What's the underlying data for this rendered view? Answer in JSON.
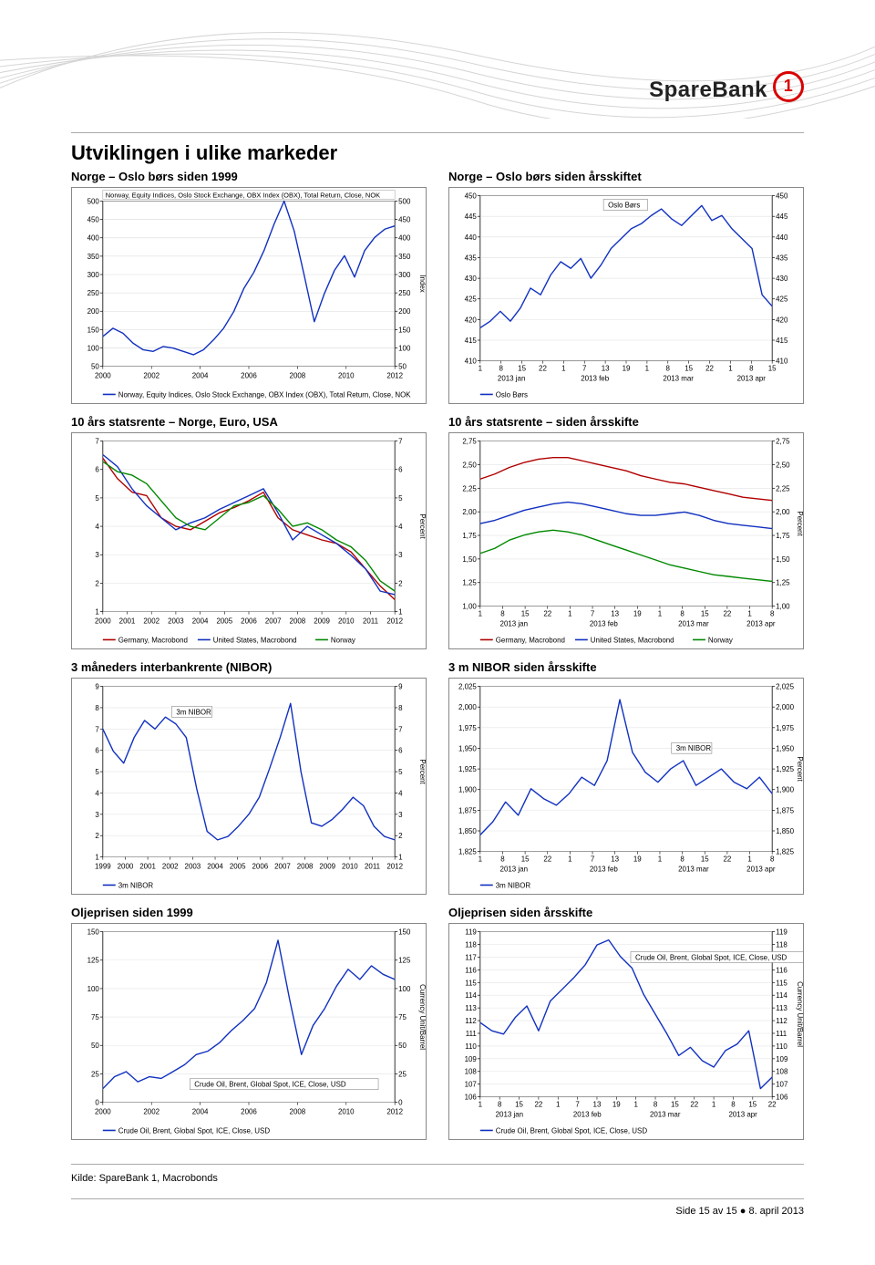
{
  "logo_text": "SpareBank",
  "page_title": "Utviklingen i ulike markeder",
  "source_line": "Kilde: SpareBank 1, Macrobonds",
  "page_footer": "Side 15 av 15 ● 8. april 2013",
  "charts": {
    "c1": {
      "title": "Norge – Oslo børs siden 1999",
      "top_label": "Norway, Equity Indices, Oslo Stock Exchange, OBX Index (OBX), Total Return, Close, NOK",
      "legend": "Norway, Equity Indices, Oslo Stock Exchange, OBX Index (OBX), Total Return, Close, NOK",
      "ytick_labels": [
        "50",
        "100",
        "150",
        "200",
        "250",
        "300",
        "350",
        "400",
        "450",
        "500"
      ],
      "ylim": [
        50,
        500
      ],
      "xtick_labels": [
        "2000",
        "2002",
        "2004",
        "2006",
        "2008",
        "2010",
        "2012"
      ],
      "right_axis_label": "Index",
      "series_color": "#1030c0",
      "grid_color": "#d8d8d8",
      "normalized_points_y01": [
        0.18,
        0.23,
        0.2,
        0.14,
        0.1,
        0.09,
        0.12,
        0.11,
        0.09,
        0.07,
        0.1,
        0.16,
        0.23,
        0.33,
        0.47,
        0.57,
        0.7,
        0.86,
        1.0,
        0.82,
        0.55,
        0.27,
        0.44,
        0.58,
        0.67,
        0.54,
        0.7,
        0.78,
        0.83,
        0.85
      ]
    },
    "c2": {
      "title": "Norge – Oslo børs siden årsskiftet",
      "legend_label_box": "Oslo Børs",
      "legend_bottom": "Oslo Børs",
      "ytick_labels": [
        "410",
        "415",
        "420",
        "425",
        "430",
        "435",
        "440",
        "445",
        "450"
      ],
      "ylim": [
        410,
        450
      ],
      "xticks": [
        {
          "major": "2013 jan",
          "minors": [
            "1",
            "8",
            "15",
            "22"
          ]
        },
        {
          "major": "2013 feb",
          "minors": [
            "1",
            "7",
            "13",
            "19"
          ]
        },
        {
          "major": "2013 mar",
          "minors": [
            "1",
            "8",
            "15",
            "22"
          ]
        },
        {
          "major": "2013 apr",
          "minors": [
            "1",
            "8",
            "15"
          ]
        }
      ],
      "series_color": "#1030c0",
      "grid_color": "#e0e0e0",
      "normalized_points_y01": [
        0.2,
        0.24,
        0.3,
        0.24,
        0.32,
        0.44,
        0.4,
        0.52,
        0.6,
        0.56,
        0.62,
        0.5,
        0.58,
        0.68,
        0.74,
        0.8,
        0.83,
        0.88,
        0.92,
        0.86,
        0.82,
        0.88,
        0.94,
        0.85,
        0.88,
        0.8,
        0.74,
        0.68,
        0.4,
        0.33
      ]
    },
    "c3": {
      "title": "10 års statsrente – Norge, Euro, USA",
      "ytick_labels": [
        "1",
        "2",
        "3",
        "4",
        "5",
        "6",
        "7"
      ],
      "ylim": [
        1,
        7
      ],
      "xtick_labels": [
        "2000",
        "2001",
        "2002",
        "2003",
        "2004",
        "2005",
        "2006",
        "2007",
        "2008",
        "2009",
        "2010",
        "2011",
        "2012"
      ],
      "right_axis_label": "Percent",
      "legend_items": [
        {
          "label": "Germany, Macrobond",
          "color": "#b00000"
        },
        {
          "label": "United States, Macrobond",
          "color": "#1030c0"
        },
        {
          "label": "Norway",
          "color": "#008800"
        }
      ],
      "series": [
        {
          "color": "#b00000",
          "normalized": [
            0.9,
            0.78,
            0.7,
            0.68,
            0.55,
            0.5,
            0.48,
            0.53,
            0.58,
            0.61,
            0.65,
            0.7,
            0.55,
            0.48,
            0.45,
            0.42,
            0.4,
            0.35,
            0.25,
            0.15,
            0.07
          ]
        },
        {
          "color": "#1030c0",
          "normalized": [
            0.92,
            0.85,
            0.72,
            0.62,
            0.55,
            0.48,
            0.52,
            0.55,
            0.6,
            0.64,
            0.68,
            0.72,
            0.58,
            0.42,
            0.5,
            0.45,
            0.4,
            0.33,
            0.25,
            0.12,
            0.1
          ]
        },
        {
          "color": "#008800",
          "normalized": [
            0.88,
            0.82,
            0.8,
            0.75,
            0.65,
            0.55,
            0.5,
            0.48,
            0.55,
            0.62,
            0.64,
            0.68,
            0.6,
            0.5,
            0.52,
            0.48,
            0.42,
            0.38,
            0.3,
            0.18,
            0.12
          ]
        }
      ]
    },
    "c4": {
      "title": "10 års statsrente – siden årsskifte",
      "ytick_labels": [
        "1,00",
        "1,25",
        "1,50",
        "1,75",
        "2,00",
        "2,25",
        "2,50",
        "2,75"
      ],
      "ylim": [
        1.0,
        2.75
      ],
      "xticks": [
        {
          "major": "2013 jan",
          "minors": [
            "1",
            "8",
            "15",
            "22"
          ]
        },
        {
          "major": "2013 feb",
          "minors": [
            "1",
            "7",
            "13",
            "19"
          ]
        },
        {
          "major": "2013 mar",
          "minors": [
            "1",
            "8",
            "15",
            "22"
          ]
        },
        {
          "major": "2013 apr",
          "minors": [
            "1",
            "8"
          ]
        }
      ],
      "right_axis_label": "Percent",
      "legend_items": [
        {
          "label": "Germany, Macrobond",
          "color": "#b00000"
        },
        {
          "label": "United States, Macrobond",
          "color": "#1030c0"
        },
        {
          "label": "Norway",
          "color": "#008800"
        }
      ],
      "series": [
        {
          "color": "#b00000",
          "normalized": [
            0.77,
            0.8,
            0.84,
            0.87,
            0.89,
            0.9,
            0.9,
            0.88,
            0.86,
            0.84,
            0.82,
            0.79,
            0.77,
            0.75,
            0.74,
            0.72,
            0.7,
            0.68,
            0.66,
            0.65,
            0.64
          ]
        },
        {
          "color": "#1030c0",
          "normalized": [
            0.5,
            0.52,
            0.55,
            0.58,
            0.6,
            0.62,
            0.63,
            0.62,
            0.6,
            0.58,
            0.56,
            0.55,
            0.55,
            0.56,
            0.57,
            0.55,
            0.52,
            0.5,
            0.49,
            0.48,
            0.47
          ]
        },
        {
          "color": "#008800",
          "normalized": [
            0.32,
            0.35,
            0.4,
            0.43,
            0.45,
            0.46,
            0.45,
            0.43,
            0.4,
            0.37,
            0.34,
            0.31,
            0.28,
            0.25,
            0.23,
            0.21,
            0.19,
            0.18,
            0.17,
            0.16,
            0.15
          ]
        }
      ]
    },
    "c5": {
      "title": "3 måneders interbankrente (NIBOR)",
      "legend_label_box": "3m NIBOR",
      "legend_bottom": "3m NIBOR",
      "ytick_labels": [
        "1",
        "2",
        "3",
        "4",
        "5",
        "6",
        "7",
        "8",
        "9"
      ],
      "ylim": [
        1,
        9
      ],
      "xtick_labels": [
        "1999",
        "2000",
        "2001",
        "2002",
        "2003",
        "2004",
        "2005",
        "2006",
        "2007",
        "2008",
        "2009",
        "2010",
        "2011",
        "2012"
      ],
      "right_axis_label": "Percent",
      "series_color": "#1030c0",
      "normalized_points_y01": [
        0.75,
        0.62,
        0.55,
        0.7,
        0.8,
        0.75,
        0.82,
        0.78,
        0.7,
        0.4,
        0.15,
        0.1,
        0.12,
        0.18,
        0.25,
        0.35,
        0.52,
        0.7,
        0.9,
        0.5,
        0.2,
        0.18,
        0.22,
        0.28,
        0.35,
        0.3,
        0.18,
        0.12,
        0.1
      ]
    },
    "c6": {
      "title": "3 m NIBOR siden årsskifte",
      "legend_label_box": "3m NIBOR",
      "legend_bottom": "3m NIBOR",
      "ytick_labels": [
        "1,825",
        "1,850",
        "1,875",
        "1,900",
        "1,925",
        "1,950",
        "1,975",
        "2,000",
        "2,025"
      ],
      "ylim": [
        1.825,
        2.025
      ],
      "xticks": [
        {
          "major": "2013 jan",
          "minors": [
            "1",
            "8",
            "15",
            "22"
          ]
        },
        {
          "major": "2013 feb",
          "minors": [
            "1",
            "7",
            "13",
            "19"
          ]
        },
        {
          "major": "2013 mar",
          "minors": [
            "1",
            "8",
            "15",
            "22"
          ]
        },
        {
          "major": "2013 apr",
          "minors": [
            "1",
            "8"
          ]
        }
      ],
      "right_axis_label": "Percent",
      "series_color": "#1030c0",
      "normalized_points_y01": [
        0.1,
        0.18,
        0.3,
        0.22,
        0.38,
        0.32,
        0.28,
        0.35,
        0.45,
        0.4,
        0.55,
        0.92,
        0.6,
        0.48,
        0.42,
        0.5,
        0.55,
        0.4,
        0.45,
        0.5,
        0.42,
        0.38,
        0.45,
        0.35
      ]
    },
    "c7": {
      "title": "Oljeprisen siden 1999",
      "legend_label_box": "Crude Oil, Brent, Global Spot, ICE, Close, USD",
      "legend_bottom": "Crude Oil, Brent, Global Spot, ICE, Close, USD",
      "ytick_labels": [
        "0",
        "25",
        "50",
        "75",
        "100",
        "125",
        "150"
      ],
      "ylim": [
        0,
        150
      ],
      "xtick_labels": [
        "2000",
        "2002",
        "2004",
        "2006",
        "2008",
        "2010",
        "2012"
      ],
      "right_axis_label": "Currency Unit/Barrel",
      "series_color": "#1030c0",
      "normalized_points_y01": [
        0.08,
        0.15,
        0.18,
        0.12,
        0.15,
        0.14,
        0.18,
        0.22,
        0.28,
        0.3,
        0.35,
        0.42,
        0.48,
        0.55,
        0.7,
        0.95,
        0.6,
        0.28,
        0.45,
        0.55,
        0.68,
        0.78,
        0.72,
        0.8,
        0.75,
        0.72
      ]
    },
    "c8": {
      "title": "Oljeprisen siden årsskifte",
      "legend_label_box": "Crude Oil, Brent, Global Spot, ICE, Close, USD",
      "legend_bottom": "Crude Oil, Brent, Global Spot, ICE, Close, USD",
      "ytick_labels": [
        "106",
        "107",
        "108",
        "109",
        "110",
        "111",
        "112",
        "113",
        "114",
        "115",
        "116",
        "117",
        "118",
        "119"
      ],
      "ylim": [
        106,
        119
      ],
      "xticks": [
        {
          "major": "2013 jan",
          "minors": [
            "1",
            "8",
            "15",
            "22"
          ]
        },
        {
          "major": "2013 feb",
          "minors": [
            "1",
            "7",
            "13",
            "19"
          ]
        },
        {
          "major": "2013 mar",
          "minors": [
            "1",
            "8",
            "15",
            "22"
          ]
        },
        {
          "major": "2013 apr",
          "minors": [
            "1",
            "8",
            "15",
            "22"
          ]
        }
      ],
      "right_axis_label": "Currency Unit/Barrel",
      "series_color": "#1030c0",
      "normalized_points_y01": [
        0.45,
        0.4,
        0.38,
        0.48,
        0.55,
        0.4,
        0.58,
        0.65,
        0.72,
        0.8,
        0.92,
        0.95,
        0.85,
        0.78,
        0.62,
        0.5,
        0.38,
        0.25,
        0.3,
        0.22,
        0.18,
        0.28,
        0.32,
        0.4,
        0.05,
        0.12
      ]
    }
  }
}
